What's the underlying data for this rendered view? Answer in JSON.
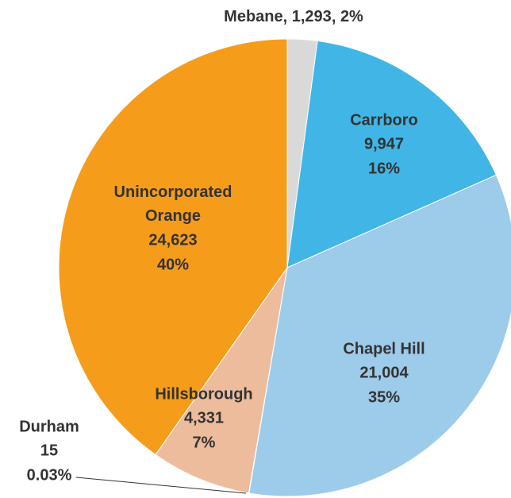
{
  "chart_data": {
    "type": "pie",
    "categories": [
      "Mebane",
      "Carrboro",
      "Chapel Hill",
      "Durham",
      "Hillsborough",
      "Unincorporated Orange"
    ],
    "values": [
      1293,
      9947,
      21004,
      15,
      4331,
      24623
    ],
    "value_labels": [
      "1,293",
      "9,947",
      "21,004",
      "15",
      "4,331",
      "24,623"
    ],
    "percent_labels": [
      "2%",
      "16%",
      "35%",
      "0.03%",
      "7%",
      "40%"
    ],
    "colors": [
      "#d9d9d9",
      "#41b6e6",
      "#9dcbea",
      "#7f7f7f",
      "#ecbc9c",
      "#f59c1b"
    ]
  }
}
